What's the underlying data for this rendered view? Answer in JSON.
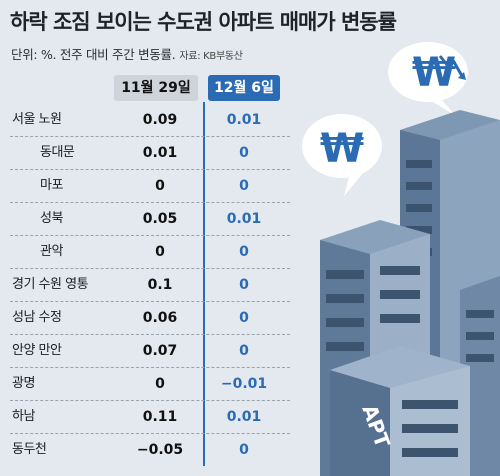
{
  "header": {
    "title": "하락 조짐 보이는 수도권 아파트 매매가 변동률",
    "subtitle": "단위: %. 전주 대비 주간 변동률.",
    "source": "자료: KB부동산"
  },
  "chart_data": {
    "type": "table",
    "columns": [
      "11월 29일",
      "12월 6일"
    ],
    "rows": [
      {
        "name": "서울 노원",
        "indent": false,
        "values": [
          "0.09",
          "0.01"
        ]
      },
      {
        "name": "동대문",
        "indent": true,
        "values": [
          "0.01",
          "0"
        ]
      },
      {
        "name": "마포",
        "indent": true,
        "values": [
          "0",
          "0"
        ]
      },
      {
        "name": "성북",
        "indent": true,
        "values": [
          "0.05",
          "0.01"
        ]
      },
      {
        "name": "관악",
        "indent": true,
        "values": [
          "0",
          "0"
        ]
      },
      {
        "name": "경기 수원 영통",
        "indent": false,
        "values": [
          "0.1",
          "0"
        ]
      },
      {
        "name": "성남 수정",
        "indent": false,
        "values": [
          "0.06",
          "0"
        ]
      },
      {
        "name": "안양 만안",
        "indent": false,
        "values": [
          "0.07",
          "0"
        ]
      },
      {
        "name": "광명",
        "indent": false,
        "values": [
          "0",
          "−0.01"
        ]
      },
      {
        "name": "하남",
        "indent": false,
        "values": [
          "0.11",
          "0.01"
        ]
      },
      {
        "name": "동두천",
        "indent": false,
        "values": [
          "−0.05",
          "0"
        ]
      }
    ]
  },
  "illustration": {
    "building_label": "APT",
    "icons": [
      "won-falling-icon",
      "won-icon"
    ],
    "colors": {
      "accent": "#2a6bb4",
      "building": "#5e7a99",
      "background": "#e3e9ef"
    }
  }
}
